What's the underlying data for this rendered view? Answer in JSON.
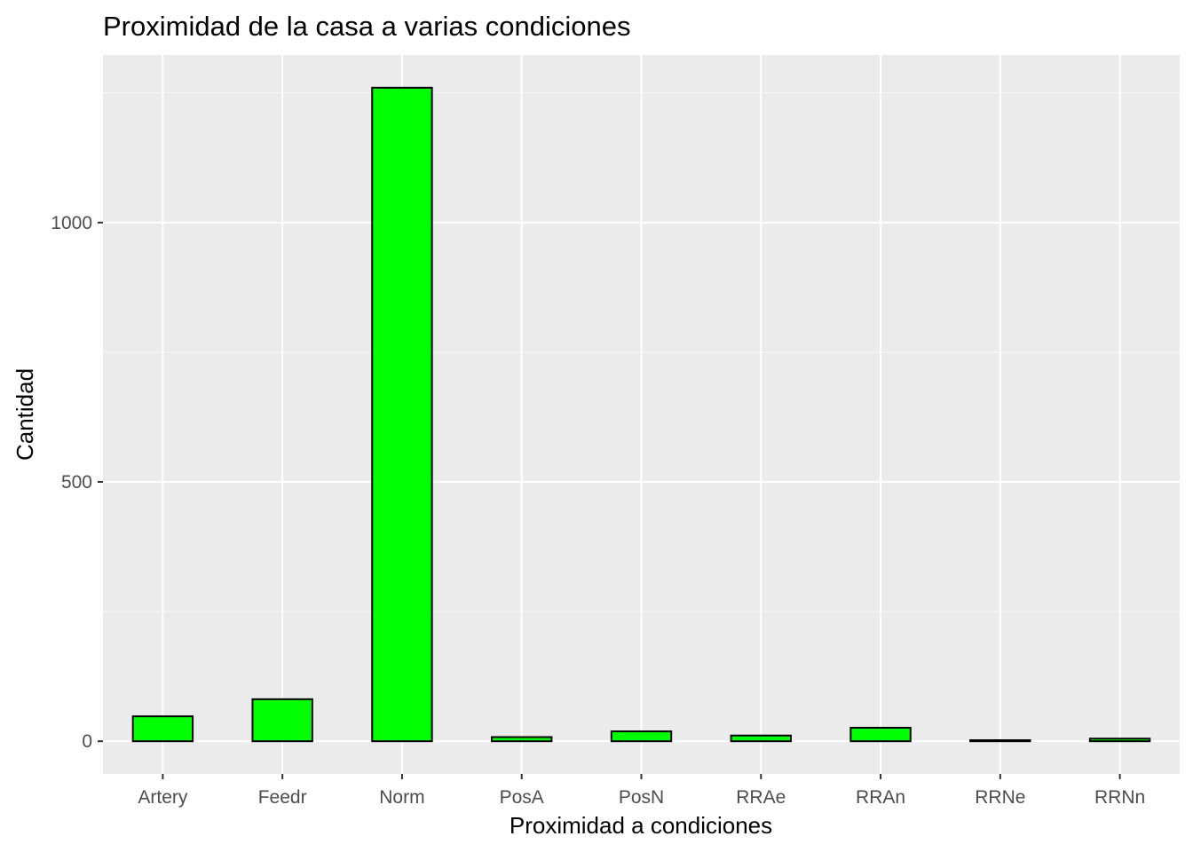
{
  "chart_data": {
    "type": "bar",
    "title": "Proximidad de la casa a varias condiciones",
    "xlabel": "Proximidad a condiciones",
    "ylabel": "Cantidad",
    "categories": [
      "Artery",
      "Feedr",
      "Norm",
      "PosA",
      "PosN",
      "RRAe",
      "RRAn",
      "RRNe",
      "RRNn"
    ],
    "values": [
      48,
      81,
      1260,
      8,
      19,
      11,
      26,
      2,
      5
    ],
    "ylim": [
      -63,
      1323
    ],
    "yticks": [
      0,
      500,
      1000
    ],
    "ytick_labels": [
      "0",
      "500",
      "1000"
    ],
    "grid": true,
    "legend": "none",
    "colors": {
      "panel_background": "#ebebeb",
      "grid_major": "#ffffff",
      "bar_fill": "#00ff00",
      "bar_stroke": "#000000",
      "tick_text": "#4d4d4d"
    }
  }
}
